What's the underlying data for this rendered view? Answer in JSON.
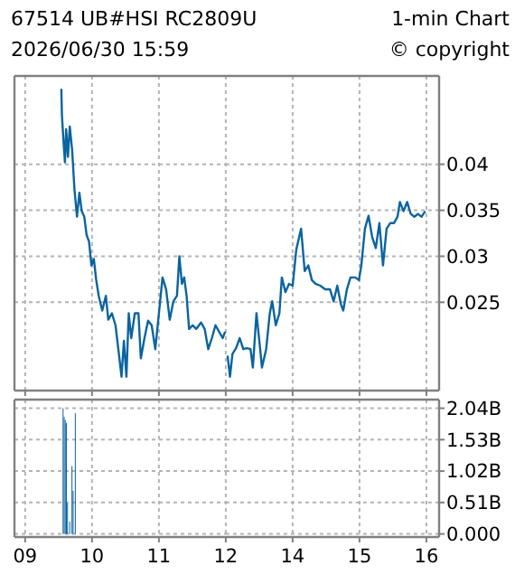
{
  "chart_data": [
    {
      "type": "line",
      "title": "67514 UB#HSI  RC2809U",
      "subtitle": "2026/06/30 15:59",
      "annotations": [
        "1-min Chart",
        "© copyright"
      ],
      "xlim": [
        8.84,
        12
      ],
      "xticks": [
        9,
        10,
        11,
        12
      ],
      "ylim": [
        0.0154,
        0.0496
      ],
      "yticks": [
        0.025,
        0.03,
        0.035,
        0.04
      ],
      "grid": true,
      "tick_labels": false,
      "series": [
        {
          "color": "#0a64a0",
          "x": [
            9.541,
            9.55,
            9.577,
            9.595,
            9.613,
            9.64,
            9.667,
            9.703,
            9.738,
            9.775,
            9.811,
            9.846,
            9.884,
            9.919,
            9.955,
            9.991,
            10.027,
            10.063,
            10.1,
            10.153,
            10.207,
            10.243,
            10.297,
            10.351,
            10.405,
            10.441,
            10.477,
            10.514,
            10.549,
            10.586,
            10.64,
            10.694,
            10.73,
            10.784,
            10.838,
            10.892,
            10.946,
            11,
            11.054,
            11.108,
            11.162,
            11.216,
            11.27,
            11.306,
            11.344,
            11.378,
            11.414,
            11.451,
            11.505,
            11.559,
            11.63,
            11.684,
            11.738,
            11.792,
            11.846,
            11.9,
            11.954,
            11.99
          ],
          "values": [
            0.0482,
            0.0453,
            0.0421,
            0.0402,
            0.0438,
            0.0408,
            0.0441,
            0.0415,
            0.0372,
            0.0343,
            0.0369,
            0.0349,
            0.0343,
            0.0323,
            0.0316,
            0.029,
            0.0297,
            0.0274,
            0.0257,
            0.0241,
            0.0257,
            0.0231,
            0.0238,
            0.0225,
            0.0192,
            0.0169,
            0.0208,
            0.0169,
            0.0238,
            0.0211,
            0.0238,
            0.0238,
            0.0189,
            0.0211,
            0.023,
            0.0225,
            0.0199,
            0.0238,
            0.0277,
            0.0264,
            0.0231,
            0.0251,
            0.0257,
            0.03,
            0.027,
            0.0277,
            0.0257,
            0.0221,
            0.0225,
            0.0221,
            0.0228,
            0.0221,
            0.0199,
            0.0211,
            0.0225,
            0.0218,
            0.0211,
            0.0218
          ]
        }
      ]
    },
    {
      "type": "line",
      "xlim": [
        13,
        16.19
      ],
      "xticks": [
        14,
        15,
        16
      ],
      "ylim": [
        0.0154,
        0.0496
      ],
      "yticks": [
        0.025,
        0.03,
        0.035,
        0.04
      ],
      "grid": true,
      "tick_labels": "y",
      "series": [
        {
          "color": "#0a64a0",
          "x": [
            13.027,
            13.063,
            13.1,
            13.154,
            13.208,
            13.262,
            13.316,
            13.37,
            13.405,
            13.459,
            13.513,
            13.541,
            13.604,
            13.658,
            13.694,
            13.748,
            13.802,
            13.838,
            13.892,
            13.946,
            14,
            14.054,
            14.126,
            14.18,
            14.234,
            14.288,
            14.342,
            14.414,
            14.486,
            14.559,
            14.613,
            14.667,
            14.721,
            14.757,
            14.811,
            14.865,
            14.937,
            14.991,
            15.027,
            15.081,
            15.135,
            15.189,
            15.243,
            15.297,
            15.351,
            15.405,
            15.459,
            15.514,
            15.568,
            15.604,
            15.658,
            15.712,
            15.766,
            15.82,
            15.874,
            15.928,
            15.982
          ],
          "values": [
            0.0192,
            0.0169,
            0.0194,
            0.02,
            0.0211,
            0.0199,
            0.02,
            0.0199,
            0.0179,
            0.0238,
            0.02,
            0.0179,
            0.0199,
            0.0238,
            0.0251,
            0.0225,
            0.0238,
            0.0277,
            0.0261,
            0.027,
            0.0268,
            0.0307,
            0.033,
            0.0284,
            0.029,
            0.0274,
            0.027,
            0.0268,
            0.0264,
            0.0264,
            0.0251,
            0.0268,
            0.0248,
            0.0241,
            0.0264,
            0.0277,
            0.0277,
            0.0274,
            0.029,
            0.033,
            0.0344,
            0.0321,
            0.0309,
            0.0336,
            0.029,
            0.033,
            0.0336,
            0.0336,
            0.0343,
            0.0359,
            0.0349,
            0.0359,
            0.0346,
            0.0343,
            0.0346,
            0.0343,
            0.0349
          ]
        }
      ]
    },
    {
      "type": "bar",
      "xlim": [
        8.84,
        12
      ],
      "xticks": [
        {
          "value": 9,
          "label": "09"
        },
        10,
        11,
        12
      ],
      "ylim": [
        -0.05,
        2.18
      ],
      "yticks": [
        0,
        0.51,
        1.02,
        1.53,
        2.04
      ],
      "grid": true,
      "tick_labels": "x",
      "series": [
        {
          "color": "#0a64a0",
          "x": [
            9.567,
            9.583,
            9.6,
            9.617,
            9.633,
            9.65,
            9.667,
            9.7,
            9.717,
            9.75
          ],
          "values": [
            2.04,
            1.9,
            1.85,
            1.8,
            0.5,
            0,
            0.2,
            1.1,
            0.7,
            1.96
          ]
        }
      ]
    },
    {
      "type": "bar",
      "xlim": [
        13,
        16.19
      ],
      "xticks": [
        14,
        15,
        16
      ],
      "ylim": [
        -0.05,
        2.18
      ],
      "yticks": [
        {
          "value": 0,
          "label": "0.000"
        },
        {
          "value": 0.51,
          "label": "0.51B"
        },
        {
          "value": 1.02,
          "label": "1.02B"
        },
        {
          "value": 1.53,
          "label": "1.53B"
        },
        {
          "value": 2.04,
          "label": "2.04B"
        }
      ],
      "grid": true
    }
  ]
}
